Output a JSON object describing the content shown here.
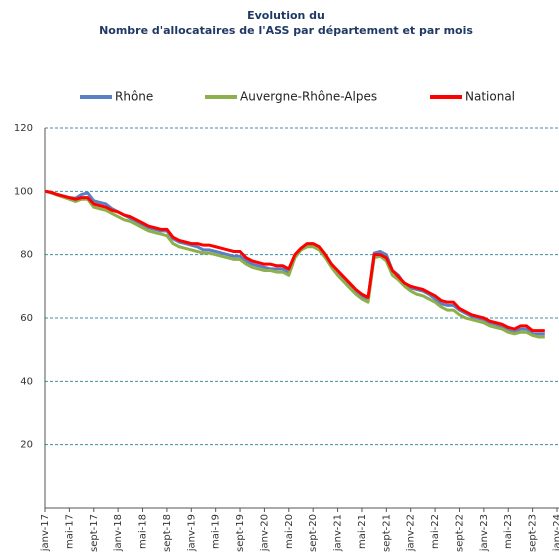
{
  "chart_data": {
    "type": "line",
    "title": "Evolution du",
    "subtitle": "Nombre d'allocataires de l'ASS par département et par mois",
    "categories": [
      "janv-17",
      null,
      null,
      null,
      "mai-17",
      null,
      null,
      null,
      "sept-17",
      null,
      null,
      null,
      "janv-18",
      null,
      null,
      null,
      "mai-18",
      null,
      null,
      null,
      "sept-18",
      null,
      null,
      null,
      "janv-19",
      null,
      null,
      null,
      "mai-19",
      null,
      null,
      null,
      "sept-19",
      null,
      null,
      null,
      "janv-20",
      null,
      null,
      null,
      "mai-20",
      null,
      null,
      null,
      "sept-20",
      null,
      null,
      null,
      "janv-21",
      null,
      null,
      null,
      "mai-21",
      null,
      null,
      null,
      "sept-21",
      null,
      null,
      null,
      "janv-22",
      null,
      null,
      null,
      "mai-22",
      null,
      null,
      null,
      "sept-22",
      null,
      null,
      null,
      "janv-23",
      null,
      null,
      null,
      "mai-23",
      null,
      null,
      null,
      "sept-23",
      null,
      null,
      null,
      "janv-24"
    ],
    "series": [
      {
        "name": "Rhône",
        "color": "#5b7fc4",
        "values": [
          100,
          99.7,
          99,
          98.5,
          98,
          97.8,
          99,
          99.5,
          97,
          96.5,
          96,
          94.5,
          93.5,
          92.5,
          91.5,
          90.5,
          89.5,
          88.5,
          88,
          87.5,
          87.5,
          85,
          84,
          83.5,
          83,
          82.5,
          81.5,
          81.5,
          81,
          80.5,
          80,
          79.5,
          79.5,
          78,
          77,
          76.5,
          76,
          75.5,
          75.5,
          75.5,
          74.5,
          79.5,
          82,
          83,
          83,
          82,
          79.5,
          76.5,
          74,
          72,
          70,
          68,
          66.5,
          66,
          80.5,
          81,
          80,
          75,
          73.5,
          70.5,
          69.5,
          69,
          68.5,
          67.5,
          66,
          64.5,
          64,
          64,
          62.5,
          61.5,
          60.5,
          60,
          59.5,
          58.5,
          58,
          57,
          56,
          55.5,
          56.5,
          56.5,
          55,
          55,
          55,
          null,
          null
        ]
      },
      {
        "name": "Auvergne-Rhône-Alpes",
        "color": "#8db04a",
        "values": [
          100,
          99.5,
          98.8,
          98.2,
          97.5,
          96.8,
          97.5,
          97.5,
          95,
          94.5,
          94,
          93,
          92,
          91,
          90.5,
          89.5,
          88.5,
          87.5,
          87,
          86.5,
          86,
          83.5,
          82.5,
          82,
          81.5,
          81,
          80.5,
          80.5,
          80,
          79.5,
          79,
          78.5,
          78.5,
          77,
          76,
          75.5,
          75,
          75,
          74.5,
          74.5,
          73.5,
          79,
          81.5,
          82.5,
          82.5,
          81.5,
          79,
          76,
          73.5,
          71.5,
          69.5,
          67.5,
          66,
          65,
          79,
          79.5,
          78,
          73.5,
          72,
          70,
          68.5,
          67.5,
          67,
          66,
          65,
          63.5,
          62.5,
          62.5,
          61,
          60,
          59.5,
          59,
          58.5,
          57.5,
          57,
          56.5,
          55.5,
          55,
          55.5,
          55.5,
          54.5,
          54,
          54,
          null,
          null
        ]
      },
      {
        "name": "National",
        "color": "#ff0000",
        "values": [
          100,
          99.7,
          99,
          98.5,
          98,
          97.5,
          98,
          98,
          96,
          95.5,
          95,
          94,
          93.5,
          92.5,
          92,
          91,
          90,
          89,
          88.5,
          88,
          88,
          85.5,
          84.5,
          84,
          83.5,
          83.5,
          83,
          83,
          82.5,
          82,
          81.5,
          81,
          81,
          79,
          78,
          77.5,
          77,
          77,
          76.5,
          76.5,
          75.5,
          80,
          82,
          83.5,
          83.5,
          82.5,
          80,
          77,
          75,
          73,
          71,
          69,
          67.5,
          66.5,
          80,
          80,
          79,
          75,
          73,
          71,
          70,
          69.5,
          69,
          68,
          67,
          65.5,
          65,
          65,
          63,
          62,
          61,
          60.5,
          60,
          59,
          58.5,
          58,
          57,
          56.5,
          57.5,
          57.5,
          56,
          56,
          56,
          null,
          null
        ]
      }
    ],
    "ylim": [
      0,
      120
    ],
    "yticks": [
      20,
      40,
      60,
      80,
      100,
      120
    ],
    "grid": true,
    "legend": "top"
  }
}
